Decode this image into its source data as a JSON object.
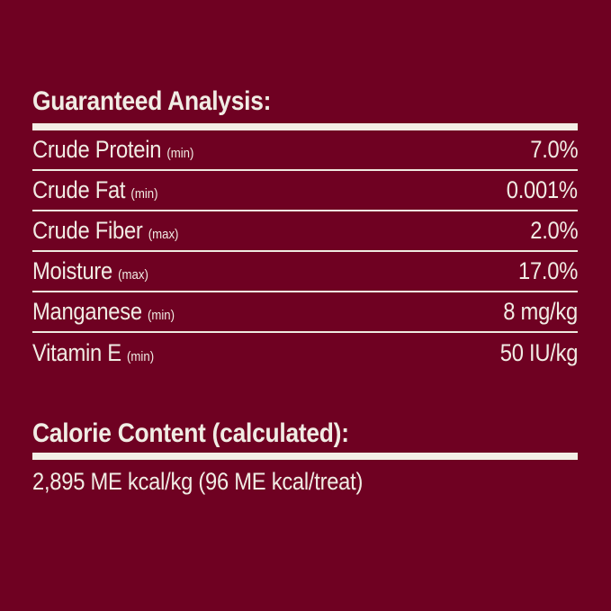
{
  "colors": {
    "background": "#6F0122",
    "ink": "#F1ECE4",
    "rule": "#F3EEE6"
  },
  "guaranteed_analysis": {
    "title": "Guaranteed Analysis:",
    "rows": [
      {
        "label": "Crude Protein",
        "qualifier": "(min)",
        "value": "7.0%"
      },
      {
        "label": "Crude Fat",
        "qualifier": "(min)",
        "value": "0.001%"
      },
      {
        "label": "Crude Fiber",
        "qualifier": "(max)",
        "value": "2.0%"
      },
      {
        "label": "Moisture",
        "qualifier": "(max)",
        "value": "17.0%"
      },
      {
        "label": "Manganese",
        "qualifier": "(min)",
        "value": "8 mg/kg"
      },
      {
        "label": "Vitamin E",
        "qualifier": "(min)",
        "value": "50 IU/kg"
      }
    ]
  },
  "calorie_content": {
    "title": "Calorie Content (calculated):",
    "value": "2,895 ME kcal/kg (96 ME kcal/treat)"
  }
}
